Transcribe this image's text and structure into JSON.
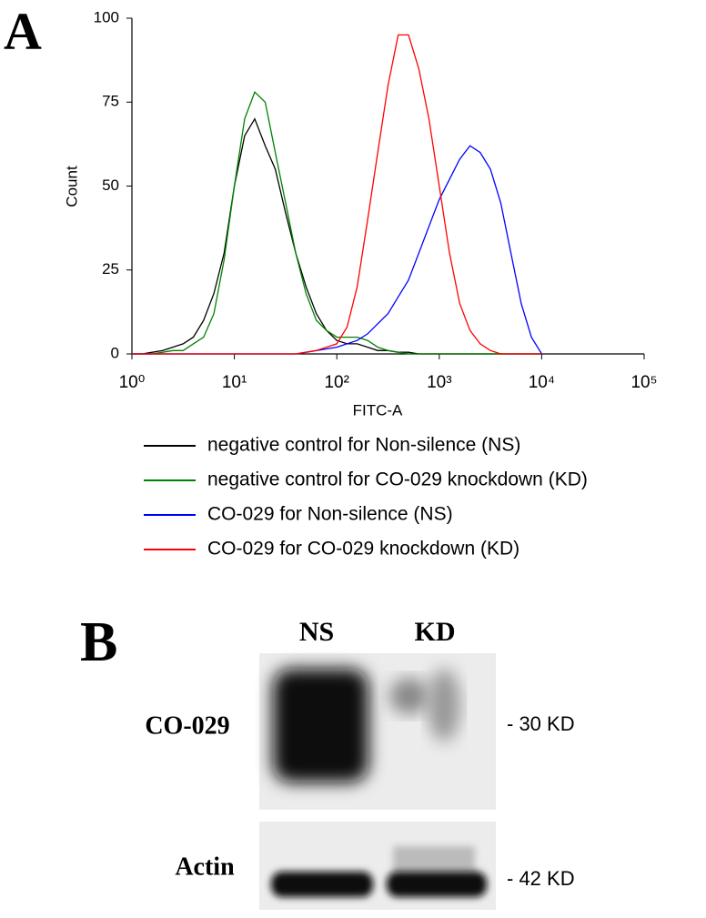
{
  "chart_data": {
    "type": "line",
    "panel_label": "A",
    "xlabel": "FITC-A",
    "ylabel": "Count",
    "xscale": "log",
    "xlim": [
      1,
      100000
    ],
    "xticks": [
      {
        "value": 1,
        "label": "10⁰"
      },
      {
        "value": 10,
        "label": "10¹"
      },
      {
        "value": 100,
        "label": "10²"
      },
      {
        "value": 1000,
        "label": "10³"
      },
      {
        "value": 10000,
        "label": "10⁴"
      },
      {
        "value": 100000,
        "label": "10⁵"
      }
    ],
    "ylim": [
      0,
      100
    ],
    "yticks": [
      0,
      25,
      50,
      75,
      100
    ],
    "grid": false,
    "legend": "bottom",
    "x": [
      1,
      1.26,
      1.58,
      2,
      2.51,
      3.16,
      3.98,
      5.01,
      6.31,
      7.94,
      10,
      12.6,
      15.8,
      20,
      25.1,
      31.6,
      39.8,
      50.1,
      63.1,
      79.4,
      100,
      126,
      158,
      200,
      251,
      316,
      398,
      501,
      631,
      794,
      1000,
      1259,
      1585,
      1995,
      2512,
      3162,
      3981,
      5012,
      6310,
      7943,
      10000
    ],
    "series": [
      {
        "name": "negative control for Non-silence (NS)",
        "color": "#000000",
        "values": [
          0,
          0,
          0.5,
          1,
          2,
          3,
          5,
          10,
          18,
          30,
          50,
          65,
          70,
          62,
          55,
          42,
          30,
          20,
          12,
          7,
          4,
          3,
          3,
          2,
          1,
          1,
          0.5,
          0.5,
          0,
          0,
          0,
          0,
          0,
          0,
          0,
          0,
          0,
          0,
          0,
          0,
          0
        ]
      },
      {
        "name": "negative control for CO-029 knockdown (KD)",
        "color": "#008000",
        "values": [
          0,
          0,
          0,
          0.5,
          1,
          1,
          3,
          5,
          12,
          28,
          50,
          70,
          78,
          75,
          60,
          45,
          30,
          18,
          10,
          7,
          5,
          5,
          5,
          4,
          2,
          1,
          0.5,
          0,
          0,
          0,
          0,
          0,
          0,
          0,
          0,
          0,
          0,
          0,
          0,
          0,
          0
        ]
      },
      {
        "name": "CO-029 for Non-silence (NS)",
        "color": "#0000ff",
        "values": [
          0,
          0,
          0,
          0,
          0,
          0,
          0,
          0,
          0,
          0,
          0,
          0,
          0,
          0,
          0,
          0,
          0,
          0.5,
          1,
          1.5,
          2,
          3,
          4,
          6,
          9,
          12,
          17,
          22,
          30,
          38,
          46,
          52,
          58,
          62,
          60,
          55,
          45,
          30,
          15,
          5,
          0
        ]
      },
      {
        "name": "CO-029 for CO-029 knockdown (KD)",
        "color": "#ff0000",
        "values": [
          0,
          0,
          0,
          0,
          0,
          0,
          0,
          0,
          0,
          0,
          0,
          0,
          0,
          0,
          0,
          0,
          0,
          0.5,
          1,
          2,
          3,
          8,
          20,
          40,
          60,
          80,
          95,
          95,
          85,
          70,
          50,
          30,
          15,
          7,
          3,
          1,
          0,
          0,
          0,
          0,
          0
        ]
      }
    ]
  },
  "panel_b": {
    "label": "B",
    "lanes": [
      "NS",
      "KD"
    ],
    "rows": [
      {
        "protein": "CO-029",
        "size": "- 30 KD"
      },
      {
        "protein": "Actin",
        "size": "- 42 KD"
      }
    ]
  }
}
